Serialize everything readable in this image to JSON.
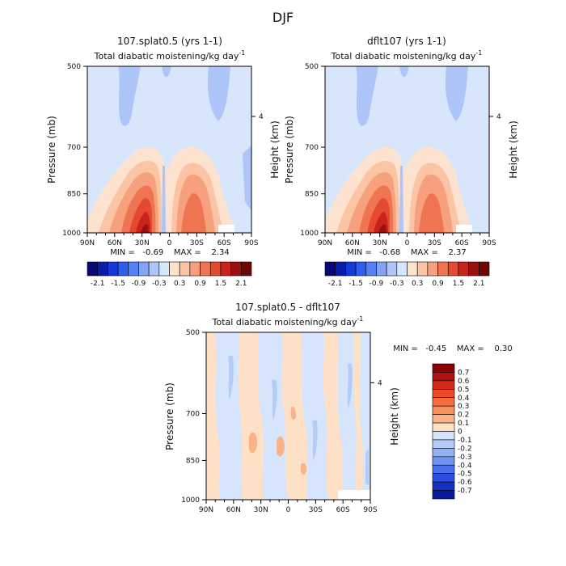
{
  "page_title": "DJF",
  "chart_data": [
    {
      "type": "heatmap",
      "title": "107.splat0.5 (yrs 1-1)",
      "subtitle": "Total diabatic moistening/kg day",
      "subtitle_sup": "-1",
      "xlabel": "",
      "ylabel": "Pressure (mb)",
      "ylabel_right": "Height (km)",
      "x_ticks": [
        "90N",
        "60N",
        "30N",
        "0",
        "30S",
        "60S",
        "90S"
      ],
      "x_values": [
        90,
        60,
        30,
        0,
        -30,
        -60,
        -90
      ],
      "y_ticks": [
        "500",
        "700",
        "850",
        "1000"
      ],
      "y_values": [
        500,
        700,
        850,
        1000
      ],
      "right_ticks": [
        "4"
      ],
      "right_tick_pressure": 616,
      "stats": "MIN =   -0.69    MAX =    2.34",
      "min": -0.69,
      "max": 2.34,
      "colorbar_labels": [
        "-2.1",
        "-1.5",
        "-0.9",
        "-0.3",
        "0.3",
        "0.9",
        "1.5",
        "2.1"
      ],
      "colorbar_levels": [
        -2.1,
        -1.8,
        -1.5,
        -1.2,
        -0.9,
        -0.6,
        -0.3,
        0,
        0.3,
        0.6,
        0.9,
        1.2,
        1.5,
        1.8,
        2.1
      ],
      "colorbar_colors": [
        "#08087a",
        "#0b1da8",
        "#1538d8",
        "#2d5ef0",
        "#5581f4",
        "#82a3f6",
        "#adc5f8",
        "#d7e6fb",
        "#fde3cf",
        "#fbc4a4",
        "#f7a07d",
        "#ef7552",
        "#e34a2f",
        "#c8231c",
        "#9a0f0f",
        "#6e0606"
      ]
    },
    {
      "type": "heatmap",
      "title": "dflt107 (yrs 1-1)",
      "subtitle": "Total diabatic moistening/kg day",
      "subtitle_sup": "-1",
      "xlabel": "",
      "ylabel": "Pressure (mb)",
      "ylabel_right": "Height (km)",
      "x_ticks": [
        "90N",
        "60N",
        "30N",
        "0",
        "30S",
        "60S",
        "90S"
      ],
      "x_values": [
        90,
        60,
        30,
        0,
        -30,
        -60,
        -90
      ],
      "y_ticks": [
        "500",
        "700",
        "850",
        "1000"
      ],
      "y_values": [
        500,
        700,
        850,
        1000
      ],
      "right_ticks": [
        "4"
      ],
      "right_tick_pressure": 616,
      "stats": "MIN =   -0.68    MAX =    2.37",
      "min": -0.68,
      "max": 2.37,
      "colorbar_labels": [
        "-2.1",
        "-1.5",
        "-0.9",
        "-0.3",
        "0.3",
        "0.9",
        "1.5",
        "2.1"
      ],
      "colorbar_levels": [
        -2.1,
        -1.8,
        -1.5,
        -1.2,
        -0.9,
        -0.6,
        -0.3,
        0,
        0.3,
        0.6,
        0.9,
        1.2,
        1.5,
        1.8,
        2.1
      ],
      "colorbar_colors": [
        "#08087a",
        "#0b1da8",
        "#1538d8",
        "#2d5ef0",
        "#5581f4",
        "#82a3f6",
        "#adc5f8",
        "#d7e6fb",
        "#fde3cf",
        "#fbc4a4",
        "#f7a07d",
        "#ef7552",
        "#e34a2f",
        "#c8231c",
        "#9a0f0f",
        "#6e0606"
      ]
    },
    {
      "type": "heatmap",
      "title": "107.splat0.5 - dflt107",
      "subtitle": "Total diabatic moistening/kg day",
      "subtitle_sup": "-1",
      "xlabel": "",
      "ylabel": "Pressure (mb)",
      "ylabel_right": "Height (km)",
      "x_ticks": [
        "90N",
        "60N",
        "30N",
        "0",
        "30S",
        "60S",
        "90S"
      ],
      "x_values": [
        90,
        60,
        30,
        0,
        -30,
        -60,
        -90
      ],
      "y_ticks": [
        "500",
        "700",
        "850",
        "1000"
      ],
      "y_values": [
        500,
        700,
        850,
        1000
      ],
      "right_ticks": [
        "4"
      ],
      "right_tick_pressure": 616,
      "stats": "MIN =   -0.45    MAX =    0.30",
      "min": -0.45,
      "max": 0.3,
      "colorbar_labels": [
        "0.7",
        "0.6",
        "0.5",
        "0.4",
        "0.3",
        "0.2",
        "0.1",
        "0",
        "-0.1",
        "-0.2",
        "-0.3",
        "-0.4",
        "-0.5",
        "-0.6",
        "-0.7"
      ],
      "colorbar_levels": [
        0.7,
        0.6,
        0.5,
        0.4,
        0.3,
        0.2,
        0.1,
        0,
        -0.1,
        -0.2,
        -0.3,
        -0.4,
        -0.5,
        -0.6,
        -0.7
      ],
      "colorbar_colors": [
        "#8b0000",
        "#b01010",
        "#d42a1a",
        "#ec4a24",
        "#f56d3c",
        "#f8905e",
        "#fab387",
        "#fde0c6",
        "#d6e5fb",
        "#b4cdf8",
        "#92b2f5",
        "#6f93f1",
        "#4c70ec",
        "#2d4fe0",
        "#1531c4",
        "#081a9c"
      ]
    }
  ]
}
